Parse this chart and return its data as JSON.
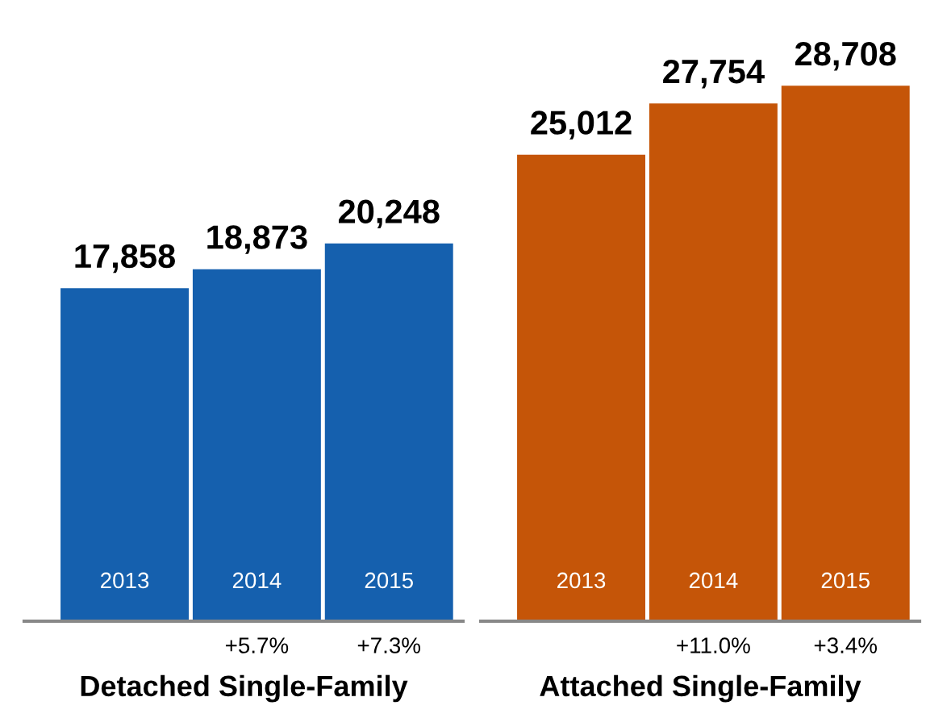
{
  "chart_data": [
    {
      "type": "bar",
      "xlabel": "Detached Single-Family",
      "categories": [
        "2013",
        "2014",
        "2015"
      ],
      "values": [
        17858,
        18873,
        20248
      ],
      "color": "#1560ae",
      "value_labels": [
        "17,858",
        "18,873",
        "20,248"
      ],
      "annotations": [
        "+5.7%",
        "+7.3%"
      ]
    },
    {
      "type": "bar",
      "xlabel": "Attached Single-Family",
      "categories": [
        "2013",
        "2014",
        "2015"
      ],
      "values": [
        25012,
        27754,
        28708
      ],
      "color": "#c55508",
      "value_labels": [
        "25,012",
        "27,754",
        "28,708"
      ],
      "annotations": [
        "+11.0%",
        "+3.4%"
      ]
    }
  ]
}
